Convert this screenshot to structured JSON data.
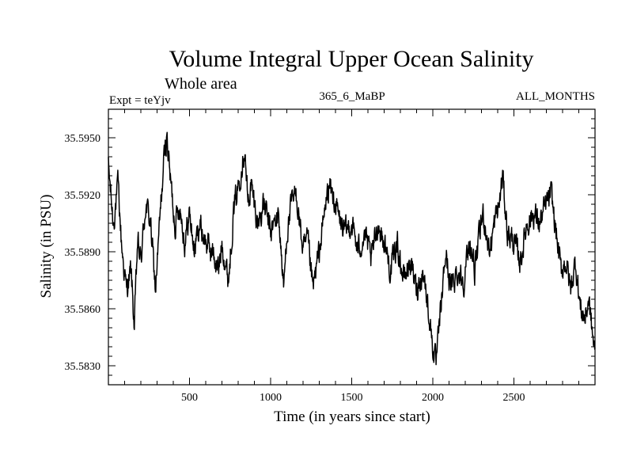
{
  "chart_data": {
    "type": "line",
    "title": "Volume Integral Upper Ocean Salinity",
    "subtitle": "Whole area",
    "experiment_label": "Expt = teYjv",
    "run_label": "365_6_MaBP",
    "months_label": "ALL_MONTHS",
    "xlabel": "Time (in years since start)",
    "ylabel": "Salinity (in PSU)",
    "xlim": [
      0,
      3000
    ],
    "ylim": [
      35.582,
      35.5965
    ],
    "xticks": [
      500,
      1000,
      1500,
      2000,
      2500
    ],
    "xtick_labels": [
      "500",
      "1000",
      "1500",
      "2000",
      "2500"
    ],
    "yticks": [
      35.583,
      35.586,
      35.589,
      35.592,
      35.595
    ],
    "ytick_labels": [
      "35.5830",
      "35.5860",
      "35.5890",
      "35.5920",
      "35.5950"
    ],
    "line_color": "#000000",
    "series": [
      {
        "name": "salinity",
        "x": [
          0,
          30,
          60,
          80,
          110,
          140,
          160,
          180,
          200,
          230,
          260,
          290,
          320,
          340,
          360,
          380,
          410,
          440,
          470,
          500,
          530,
          560,
          600,
          640,
          680,
          700,
          740,
          770,
          800,
          840,
          860,
          880,
          920,
          960,
          1000,
          1050,
          1080,
          1100,
          1130,
          1160,
          1200,
          1230,
          1260,
          1300,
          1340,
          1360,
          1400,
          1430,
          1460,
          1500,
          1540,
          1580,
          1620,
          1660,
          1700,
          1740,
          1780,
          1820,
          1860,
          1900,
          1940,
          1980,
          2000,
          2020,
          2050,
          2080,
          2110,
          2150,
          2190,
          2230,
          2260,
          2290,
          2310,
          2350,
          2380,
          2410,
          2430,
          2460,
          2500,
          2540,
          2580,
          2620,
          2660,
          2700,
          2730,
          2760,
          2790,
          2820,
          2850,
          2880,
          2910,
          2940,
          2960,
          2980,
          3000
        ],
        "values": [
          35.5935,
          35.5905,
          35.5925,
          35.5895,
          35.587,
          35.588,
          35.585,
          35.5895,
          35.5885,
          35.5915,
          35.5905,
          35.587,
          35.591,
          35.5935,
          35.5952,
          35.593,
          35.5905,
          35.5915,
          35.5895,
          35.591,
          35.589,
          35.5905,
          35.5895,
          35.589,
          35.588,
          35.5895,
          35.5875,
          35.591,
          35.5925,
          35.5945,
          35.5915,
          35.5925,
          35.5905,
          35.5915,
          35.59,
          35.591,
          35.587,
          35.59,
          35.5915,
          35.592,
          35.589,
          35.5895,
          35.587,
          35.589,
          35.5915,
          35.5925,
          35.5915,
          35.5905,
          35.59,
          35.5905,
          35.589,
          35.59,
          35.5885,
          35.5905,
          35.5895,
          35.588,
          35.5895,
          35.5875,
          35.5885,
          35.587,
          35.588,
          35.5855,
          35.584,
          35.583,
          35.586,
          35.589,
          35.587,
          35.588,
          35.5875,
          35.5895,
          35.588,
          35.59,
          35.591,
          35.589,
          35.5905,
          35.5915,
          35.593,
          35.59,
          35.5895,
          35.5885,
          35.5905,
          35.591,
          35.5905,
          35.5915,
          35.592,
          35.59,
          35.588,
          35.5885,
          35.587,
          35.5885,
          35.586,
          35.5855,
          35.5865,
          35.585,
          35.5835
        ]
      }
    ]
  }
}
